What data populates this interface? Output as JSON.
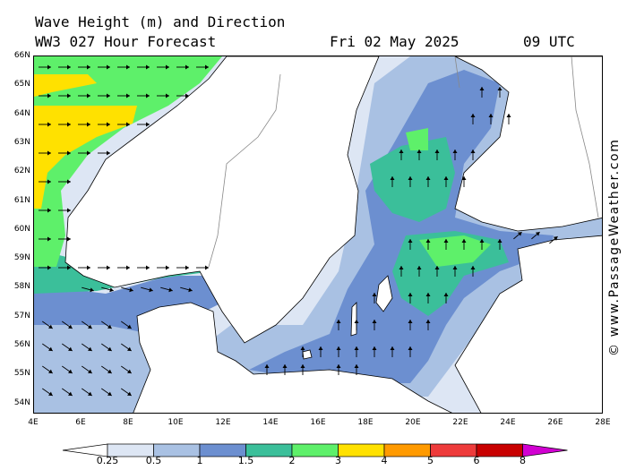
{
  "header": {
    "title": "Wave Height (m) and Direction",
    "subtitle": "WW3 027 Hour Forecast",
    "date": "Fri 02 May 2025",
    "time": "09 UTC"
  },
  "credit": "© www.PassageWeather.com",
  "lat_labels": [
    "66N",
    "65N",
    "64N",
    "63N",
    "62N",
    "61N",
    "60N",
    "59N",
    "58N",
    "57N",
    "56N",
    "55N",
    "54N"
  ],
  "lon_labels": [
    "4E",
    "6E",
    "8E",
    "10E",
    "12E",
    "14E",
    "16E",
    "18E",
    "20E",
    "22E",
    "24E",
    "26E",
    "28E"
  ],
  "scale": {
    "labels": [
      "0.25",
      "0.5",
      "1",
      "1.5",
      "2",
      "3",
      "4",
      "5",
      "6",
      "8"
    ],
    "colors": [
      "#ffffff",
      "#dde6f4",
      "#a9c1e3",
      "#6c8fd0",
      "#3bbf9a",
      "#5ef06a",
      "#ffe100",
      "#ff9a00",
      "#ee3b3b",
      "#c80000",
      "#d100d1"
    ]
  },
  "colors": {
    "land": "#ffffff",
    "coast": "#000000",
    "border": "#888888",
    "sea_calm": "#dde6f4"
  }
}
